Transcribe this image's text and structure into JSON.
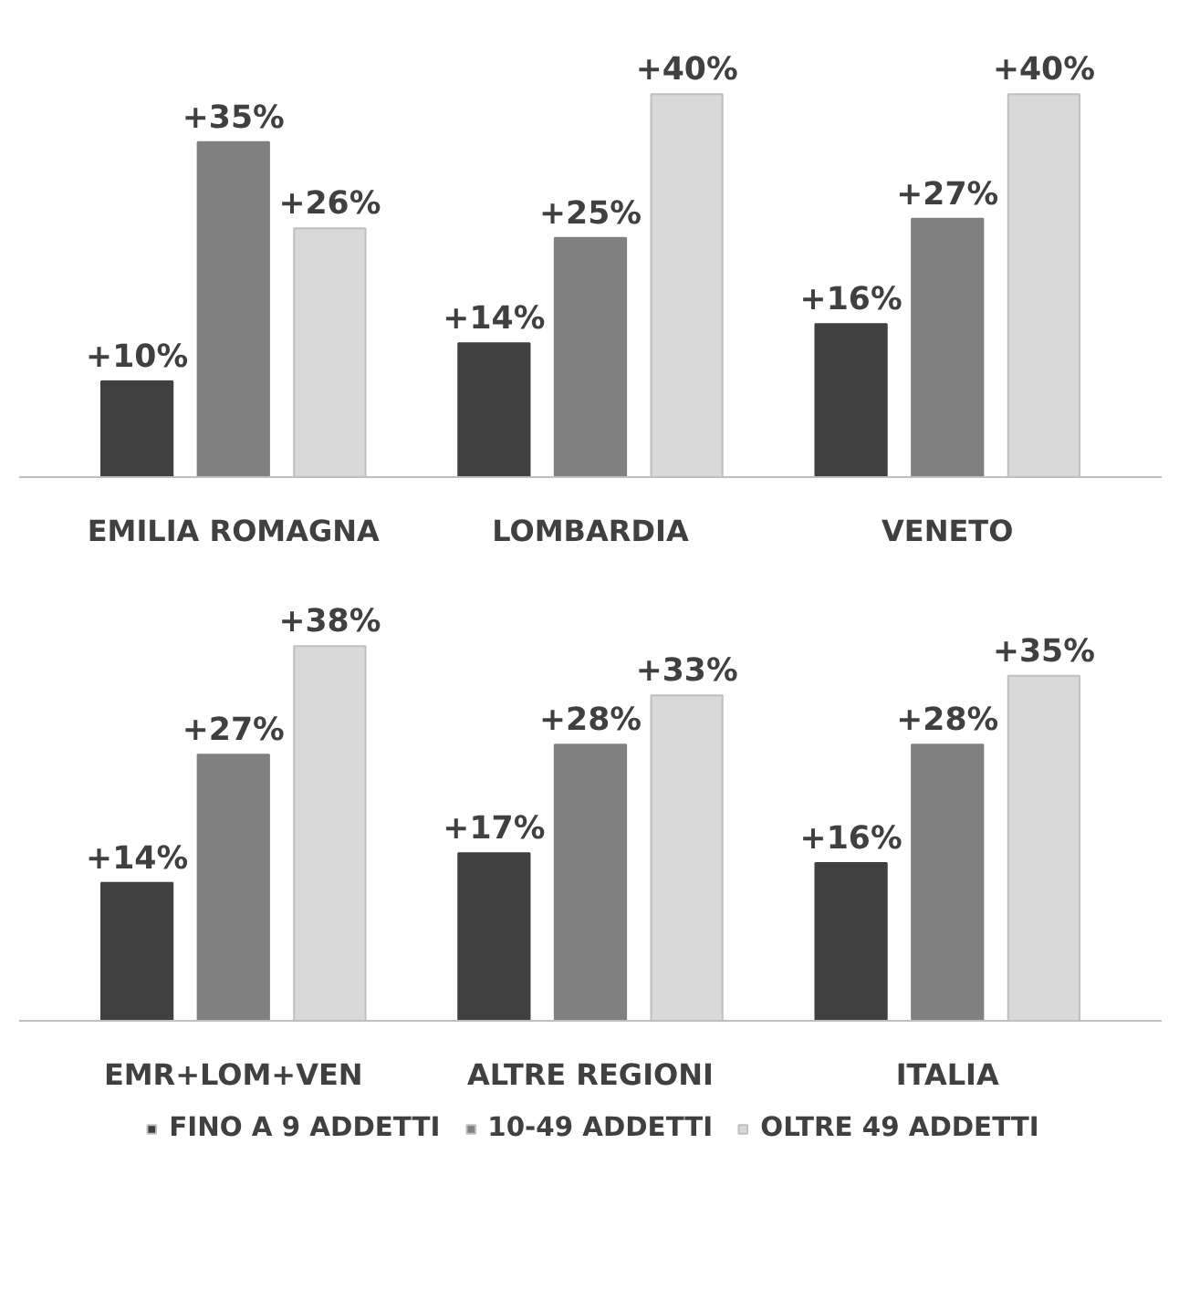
{
  "chart_data": [
    {
      "type": "bar",
      "categories": [
        "EMILIA ROMAGNA",
        "LOMBARDIA",
        "VENETO"
      ],
      "grid": false,
      "legend": false,
      "series": [
        {
          "color": "#404040",
          "values": [
            10,
            14,
            16
          ],
          "value_labels": [
            "+10%",
            "+14%",
            "+16%"
          ]
        },
        {
          "color": "#808080",
          "values": [
            35,
            25,
            27
          ],
          "value_labels": [
            "+35%",
            "+25%",
            "+27%"
          ]
        },
        {
          "color": "#d9d9d9",
          "values": [
            26,
            40,
            40
          ],
          "value_labels": [
            "+26%",
            "+40%",
            "+40%"
          ]
        }
      ]
    },
    {
      "type": "bar",
      "categories": [
        "EMR+LOM+VEN",
        "ALTRE REGIONI",
        "ITALIA"
      ],
      "grid": false,
      "legend": "bottom",
      "series": [
        {
          "name": "FINO A 9 ADDETTI",
          "color": "#404040",
          "values": [
            14,
            17,
            16
          ],
          "value_labels": [
            "+14%",
            "+17%",
            "+16%"
          ]
        },
        {
          "name": "10-49 ADDETTI",
          "color": "#808080",
          "values": [
            27,
            28,
            28
          ],
          "value_labels": [
            "+27%",
            "+28%",
            "+28%"
          ]
        },
        {
          "name": "OLTRE 49 ADDETTI",
          "color": "#d9d9d9",
          "values": [
            38,
            33,
            35
          ],
          "value_labels": [
            "+38%",
            "+33%",
            "+35%"
          ]
        }
      ]
    }
  ]
}
